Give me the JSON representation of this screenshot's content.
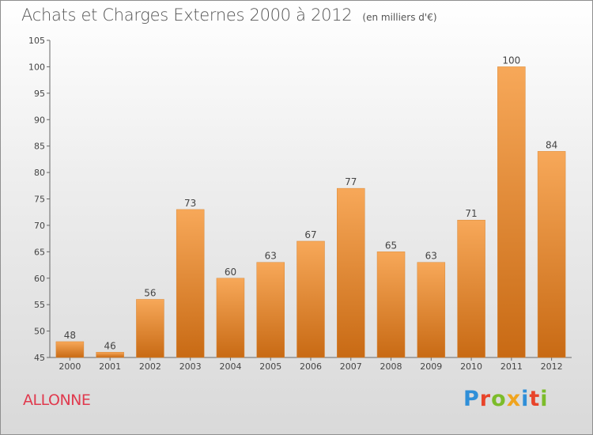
{
  "header": {
    "title": "Achats et Charges Externes 2000 à 2012",
    "unit": "(en milliers d'€)"
  },
  "footer": {
    "commune": "ALLONNE",
    "logo": {
      "letters": [
        "P",
        "r",
        "o",
        "x",
        "i",
        "t",
        "i"
      ],
      "colors": [
        "#2f8fd8",
        "#e8442a",
        "#7cbc2a",
        "#f0a41e",
        "#2f8fd8",
        "#e8442a",
        "#7cbc2a"
      ]
    }
  },
  "colors": {
    "bar_top": "#f7a859",
    "bar_bottom": "#c86a14",
    "axis": "#666666",
    "grid": "#d0d0d0"
  },
  "chart_data": {
    "type": "bar",
    "categories": [
      "2000",
      "2001",
      "2002",
      "2003",
      "2004",
      "2005",
      "2006",
      "2007",
      "2008",
      "2009",
      "2010",
      "2011",
      "2012"
    ],
    "values": [
      48,
      46,
      56,
      73,
      60,
      63,
      67,
      77,
      65,
      63,
      71,
      100,
      84
    ],
    "ylim": [
      45,
      105
    ],
    "yticks": [
      45,
      50,
      55,
      60,
      65,
      70,
      75,
      80,
      85,
      90,
      95,
      100,
      105
    ],
    "grid": false,
    "data_labels": true
  }
}
